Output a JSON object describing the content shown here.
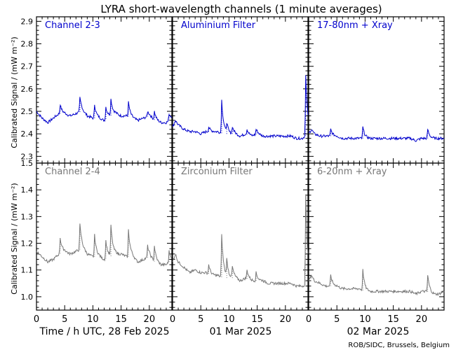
{
  "chart_data": {
    "type": "line",
    "title": "LYRA short-wavelength channels (1 minute averages)",
    "ylabel": "Calibrated Signal / (mW m⁻²)",
    "xlabels": [
      "Time / h UTC, 28 Feb 2025",
      "01 Mar 2025",
      "02 Mar 2025"
    ],
    "footer": "ROB/SIDC, Brussels, Belgium",
    "xticks": [
      "0",
      "5",
      "10",
      "15",
      "20"
    ],
    "xlim": [
      0,
      24
    ],
    "top_row": {
      "color": "#0000cc",
      "ylim": [
        2.27,
        2.92
      ],
      "yticks": [
        "2.3",
        "2.4",
        "2.5",
        "2.6",
        "2.7",
        "2.8",
        "2.9"
      ],
      "panels": [
        {
          "label": "Channel 2-3",
          "baseline": [
            [
              0,
              2.5
            ],
            [
              1,
              2.47
            ],
            [
              2,
              2.45
            ],
            [
              3,
              2.47
            ],
            [
              4,
              2.49
            ],
            [
              5,
              2.49
            ],
            [
              6,
              2.48
            ],
            [
              7,
              2.49
            ],
            [
              8,
              2.5
            ],
            [
              9,
              2.48
            ],
            [
              10,
              2.47
            ],
            [
              11,
              2.47
            ],
            [
              12,
              2.46
            ],
            [
              13,
              2.48
            ],
            [
              14,
              2.49
            ],
            [
              15,
              2.48
            ],
            [
              16,
              2.48
            ],
            [
              17,
              2.47
            ],
            [
              18,
              2.46
            ],
            [
              19,
              2.47
            ],
            [
              20,
              2.48
            ],
            [
              21,
              2.46
            ],
            [
              22,
              2.45
            ],
            [
              23,
              2.45
            ],
            [
              24,
              2.47
            ]
          ],
          "peaks": [
            [
              4.2,
              2.53
            ],
            [
              7.7,
              2.56
            ],
            [
              10.3,
              2.53
            ],
            [
              12.3,
              2.52
            ],
            [
              13.2,
              2.55
            ],
            [
              16.3,
              2.54
            ],
            [
              19.7,
              2.5
            ],
            [
              20.9,
              2.5
            ],
            [
              23.5,
              2.49
            ]
          ]
        },
        {
          "label": "Aluminium Filter",
          "baseline": [
            [
              0,
              2.43
            ],
            [
              0.5,
              2.46
            ],
            [
              1,
              2.44
            ],
            [
              2,
              2.42
            ],
            [
              3,
              2.41
            ],
            [
              4,
              2.41
            ],
            [
              5,
              2.4
            ],
            [
              6,
              2.41
            ],
            [
              7,
              2.41
            ],
            [
              8,
              2.41
            ],
            [
              9,
              2.4
            ],
            [
              10,
              2.4
            ],
            [
              11,
              2.4
            ],
            [
              12,
              2.39
            ],
            [
              13,
              2.4
            ],
            [
              14,
              2.39
            ],
            [
              15,
              2.4
            ],
            [
              16,
              2.39
            ],
            [
              17,
              2.39
            ],
            [
              18,
              2.39
            ],
            [
              19,
              2.39
            ],
            [
              20,
              2.39
            ],
            [
              21,
              2.39
            ],
            [
              22,
              2.38
            ],
            [
              23,
              2.38
            ],
            [
              24,
              2.4
            ]
          ],
          "peaks": [
            [
              6.4,
              2.43
            ],
            [
              8.7,
              2.55
            ],
            [
              9.6,
              2.44
            ],
            [
              10.6,
              2.43
            ],
            [
              13.2,
              2.42
            ],
            [
              14.8,
              2.42
            ],
            [
              23.6,
              2.66
            ]
          ]
        },
        {
          "label": "17-80nm + Xray",
          "baseline": [
            [
              0,
              2.4
            ],
            [
              0.5,
              2.42
            ],
            [
              1,
              2.4
            ],
            [
              2,
              2.39
            ],
            [
              3,
              2.39
            ],
            [
              4,
              2.39
            ],
            [
              5,
              2.39
            ],
            [
              6,
              2.38
            ],
            [
              7,
              2.38
            ],
            [
              8,
              2.38
            ],
            [
              9,
              2.38
            ],
            [
              10,
              2.38
            ],
            [
              11,
              2.38
            ],
            [
              12,
              2.38
            ],
            [
              13,
              2.38
            ],
            [
              14,
              2.38
            ],
            [
              15,
              2.38
            ],
            [
              16,
              2.38
            ],
            [
              17,
              2.38
            ],
            [
              18,
              2.38
            ],
            [
              19,
              2.37
            ],
            [
              20,
              2.38
            ],
            [
              21,
              2.38
            ],
            [
              22,
              2.38
            ],
            [
              23,
              2.38
            ],
            [
              24,
              2.38
            ]
          ],
          "peaks": [
            [
              3.9,
              2.42
            ],
            [
              9.6,
              2.43
            ],
            [
              21.1,
              2.42
            ]
          ]
        }
      ]
    },
    "bottom_row": {
      "color": "#777777",
      "ylim": [
        0.95,
        1.5
      ],
      "yticks": [
        "1.0",
        "1.1",
        "1.2",
        "1.3",
        "1.4",
        "1.5"
      ],
      "panels": [
        {
          "label": "Channel 2-4",
          "baseline": [
            [
              0,
              1.17
            ],
            [
              1,
              1.15
            ],
            [
              2,
              1.13
            ],
            [
              3,
              1.14
            ],
            [
              4,
              1.16
            ],
            [
              5,
              1.17
            ],
            [
              6,
              1.16
            ],
            [
              7,
              1.17
            ],
            [
              8,
              1.18
            ],
            [
              9,
              1.16
            ],
            [
              10,
              1.15
            ],
            [
              11,
              1.15
            ],
            [
              12,
              1.14
            ],
            [
              13,
              1.15
            ],
            [
              14,
              1.16
            ],
            [
              15,
              1.16
            ],
            [
              16,
              1.15
            ],
            [
              17,
              1.15
            ],
            [
              18,
              1.13
            ],
            [
              19,
              1.14
            ],
            [
              20,
              1.15
            ],
            [
              21,
              1.13
            ],
            [
              22,
              1.12
            ],
            [
              23,
              1.12
            ],
            [
              24,
              1.14
            ]
          ],
          "peaks": [
            [
              4.2,
              1.22
            ],
            [
              7.7,
              1.27
            ],
            [
              10.3,
              1.23
            ],
            [
              12.3,
              1.21
            ],
            [
              13.2,
              1.26
            ],
            [
              16.3,
              1.25
            ],
            [
              19.7,
              1.19
            ],
            [
              20.9,
              1.19
            ],
            [
              23.5,
              1.17
            ]
          ]
        },
        {
          "label": "Zirconium Filter",
          "baseline": [
            [
              0,
              1.13
            ],
            [
              0.5,
              1.16
            ],
            [
              1,
              1.13
            ],
            [
              2,
              1.11
            ],
            [
              3,
              1.09
            ],
            [
              4,
              1.1
            ],
            [
              5,
              1.09
            ],
            [
              6,
              1.09
            ],
            [
              7,
              1.08
            ],
            [
              8,
              1.08
            ],
            [
              9,
              1.07
            ],
            [
              10,
              1.07
            ],
            [
              11,
              1.07
            ],
            [
              12,
              1.06
            ],
            [
              13,
              1.07
            ],
            [
              14,
              1.06
            ],
            [
              15,
              1.06
            ],
            [
              16,
              1.06
            ],
            [
              17,
              1.05
            ],
            [
              18,
              1.05
            ],
            [
              19,
              1.05
            ],
            [
              20,
              1.05
            ],
            [
              21,
              1.05
            ],
            [
              22,
              1.04
            ],
            [
              23,
              1.04
            ],
            [
              24,
              1.05
            ]
          ],
          "peaks": [
            [
              6.4,
              1.12
            ],
            [
              8.7,
              1.23
            ],
            [
              9.6,
              1.13
            ],
            [
              10.6,
              1.11
            ],
            [
              13.2,
              1.1
            ],
            [
              14.8,
              1.09
            ],
            [
              23.6,
              1.38
            ]
          ]
        },
        {
          "label": "6-20nm + Xray",
          "baseline": [
            [
              0,
              1.06
            ],
            [
              0.5,
              1.08
            ],
            [
              1,
              1.06
            ],
            [
              2,
              1.05
            ],
            [
              3,
              1.04
            ],
            [
              4,
              1.04
            ],
            [
              5,
              1.04
            ],
            [
              6,
              1.03
            ],
            [
              7,
              1.03
            ],
            [
              8,
              1.03
            ],
            [
              9,
              1.03
            ],
            [
              10,
              1.02
            ],
            [
              11,
              1.02
            ],
            [
              12,
              1.02
            ],
            [
              13,
              1.02
            ],
            [
              14,
              1.02
            ],
            [
              15,
              1.02
            ],
            [
              16,
              1.02
            ],
            [
              17,
              1.02
            ],
            [
              18,
              1.02
            ],
            [
              19,
              1.01
            ],
            [
              20,
              1.02
            ],
            [
              21,
              1.02
            ],
            [
              22,
              1.01
            ],
            [
              23,
              1.01
            ],
            [
              24,
              1.02
            ]
          ],
          "peaks": [
            [
              3.9,
              1.08
            ],
            [
              9.6,
              1.1
            ],
            [
              21.1,
              1.08
            ]
          ]
        }
      ]
    }
  }
}
